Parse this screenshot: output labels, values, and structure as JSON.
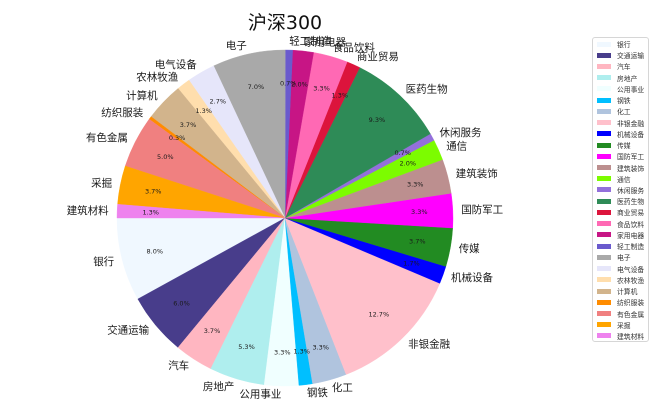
{
  "chart_data": {
    "type": "pie",
    "title": "沪深300",
    "categories": [
      "银行",
      "交通运输",
      "汽车",
      "房地产",
      "公用事业",
      "钢铁",
      "化工",
      "非银金融",
      "机械设备",
      "传媒",
      "国防军工",
      "建筑装饰",
      "通信",
      "休闲服务",
      "医药生物",
      "商业贸易",
      "食品饮料",
      "家用电器",
      "轻工制造",
      "电子",
      "电气设备",
      "农林牧渔",
      "计算机",
      "纺织服装",
      "有色金属",
      "采掘",
      "建筑材料"
    ],
    "values": [
      8.0,
      6.0,
      3.7,
      5.3,
      3.3,
      1.3,
      3.3,
      12.7,
      1.7,
      3.7,
      3.3,
      3.3,
      2.0,
      0.7,
      9.3,
      1.3,
      3.3,
      2.0,
      0.7,
      7.0,
      2.7,
      1.3,
      3.7,
      0.3,
      5.0,
      3.7,
      1.3
    ],
    "pct_labels": [
      "8.0%",
      "6.0%",
      "3.7%",
      "5.3%",
      "3.3%",
      "1.3%",
      "3.3%",
      "12.7%",
      "1.7%",
      "3.7%",
      "3.3%",
      "3.3%",
      "2.0%",
      "0.7%",
      "9.3%",
      "1.3%",
      "3.3%",
      "2.0%",
      "0.7%",
      "7.0%",
      "2.7%",
      "1.3%",
      "3.7%",
      "0.3%",
      "5.0%",
      "3.7%",
      "1.3%"
    ],
    "colors": [
      "#F0F8FF",
      "#483D8B",
      "#FFB6C1",
      "#AFEEEE",
      "#F0FFFF",
      "#00BFFF",
      "#B0C4DE",
      "#FFC0CB",
      "#0000FF",
      "#228B22",
      "#FF00FF",
      "#BC8F8F",
      "#7CFC00",
      "#9370DB",
      "#2E8B57",
      "#DC143C",
      "#FF69B4",
      "#C71585",
      "#6A5ACD",
      "#A9A9A9",
      "#E6E6FA",
      "#FFDEAD",
      "#D2B48C",
      "#FF8C00",
      "#F08080",
      "#FFA500",
      "#EE82EE"
    ],
    "start_angle": 180,
    "direction": "counterclockwise",
    "legend_position": "right",
    "xlabel": "",
    "ylabel": ""
  }
}
